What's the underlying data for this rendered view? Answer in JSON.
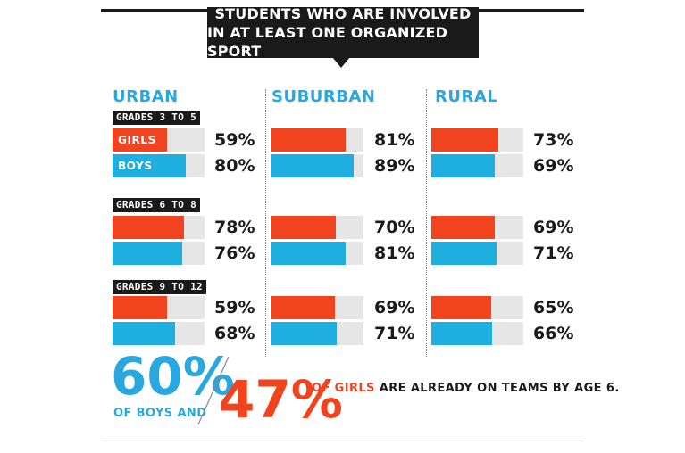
{
  "title_line1": "STUDENTS WHO ARE INVOLVED",
  "title_line2": "IN AT LEAST ONE ORGANIZED SPORT",
  "bar_labels": {
    "girls": "GIRLS",
    "boys": "BOYS"
  },
  "footer": {
    "big_boys": "60%",
    "boys_text": "OF BOYS AND",
    "big_girls": "47%",
    "girls_highlight": "OF GIRLS",
    "girls_rest": " ARE ALREADY ON TEAMS BY AGE 6."
  },
  "colors": {
    "girls": "#f1441e",
    "boys": "#1eaee0",
    "track": "#e6e6e6",
    "region": "#29a8e0",
    "dark": "#1a1a1a"
  },
  "chart_data": {
    "type": "bar",
    "title": "STUDENTS WHO ARE INVOLVED IN AT LEAST ONE ORGANIZED SPORT",
    "regions": [
      "URBAN",
      "SUBURBAN",
      "RURAL"
    ],
    "grade_groups": [
      "GRADES 3 TO 5",
      "GRADES 6 TO 8",
      "GRADES 9 TO 12"
    ],
    "ylim": [
      0,
      100
    ],
    "series": [
      {
        "name": "GIRLS",
        "values": [
          [
            59,
            81,
            73
          ],
          [
            78,
            70,
            69
          ],
          [
            59,
            69,
            65
          ]
        ]
      },
      {
        "name": "BOYS",
        "values": [
          [
            80,
            89,
            69
          ],
          [
            76,
            81,
            71
          ],
          [
            68,
            71,
            66
          ]
        ]
      }
    ]
  }
}
